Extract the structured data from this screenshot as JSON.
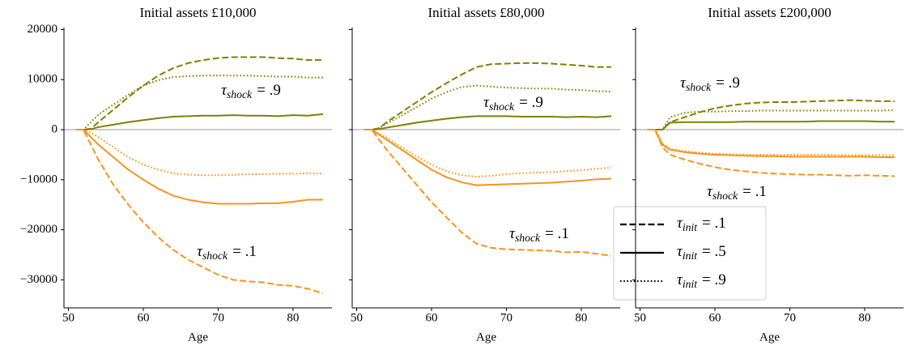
{
  "chart_data": [
    {
      "type": "line",
      "title": "Initial assets £10,000",
      "x_label": "Age",
      "x": [
        51,
        52,
        53,
        54,
        56,
        58,
        60,
        62,
        64,
        66,
        68,
        70,
        72,
        74,
        76,
        78,
        80,
        82,
        84
      ],
      "xlim": [
        49.4,
        85.2
      ],
      "xticks": [
        50,
        60,
        70,
        80
      ],
      "ylim": [
        -35600,
        20400
      ],
      "yticks": [
        {
          "value": -30000,
          "label": "−30000"
        },
        {
          "value": -20000,
          "label": "−20000"
        },
        {
          "value": -10000,
          "label": "−10000"
        },
        0,
        10000,
        20000
      ],
      "ytick_labels": true,
      "reference_line": 0,
      "series": [
        {
          "color": "#808000",
          "dash": "dashed",
          "values": [
            0,
            0,
            200,
            1500,
            4000,
            6500,
            8800,
            10800,
            12300,
            13300,
            13900,
            14300,
            14500,
            14500,
            14500,
            14300,
            14200,
            13900,
            13900
          ]
        },
        {
          "color": "#808000",
          "dash": "solid",
          "values": [
            0,
            0,
            100,
            500,
            1000,
            1500,
            1900,
            2300,
            2600,
            2700,
            2800,
            2800,
            2900,
            2800,
            2800,
            2700,
            2900,
            2800,
            3100
          ]
        },
        {
          "color": "#808000",
          "dash": "dotted",
          "values": [
            0,
            0,
            1500,
            3000,
            5000,
            7000,
            8800,
            9900,
            10500,
            10700,
            10800,
            10800,
            10800,
            10800,
            10700,
            10600,
            10600,
            10400,
            10400
          ]
        },
        {
          "color": "#f7941d",
          "dash": "dashed",
          "values": [
            0,
            0,
            -3000,
            -6000,
            -11000,
            -15000,
            -18500,
            -21500,
            -24000,
            -26000,
            -27500,
            -29000,
            -30000,
            -30300,
            -30500,
            -31000,
            -31200,
            -31800,
            -32700
          ]
        },
        {
          "color": "#f7941d",
          "dash": "solid",
          "values": [
            0,
            0,
            -1500,
            -3000,
            -5500,
            -8000,
            -10000,
            -11800,
            -13200,
            -14000,
            -14500,
            -14800,
            -14800,
            -14800,
            -14700,
            -14700,
            -14400,
            -14000,
            -14000
          ]
        },
        {
          "color": "#f7941d",
          "dash": "dotted",
          "values": [
            0,
            0,
            -600,
            -1500,
            -3500,
            -5500,
            -7000,
            -8000,
            -8700,
            -9000,
            -9100,
            -9100,
            -9000,
            -8900,
            -8900,
            -8800,
            -8800,
            -8700,
            -8800
          ]
        }
      ],
      "annotations": [
        {
          "symbol": "τ",
          "subscript": "shock",
          "text": "= .9",
          "color": "#808000"
        },
        {
          "symbol": "τ",
          "subscript": "shock",
          "text": "= .1",
          "color": "#f7941d"
        }
      ]
    },
    {
      "type": "line",
      "title": "Initial assets £80,000",
      "x_label": "Age",
      "x": [
        51,
        52,
        53,
        54,
        56,
        58,
        60,
        62,
        64,
        66,
        68,
        70,
        72,
        74,
        76,
        78,
        80,
        82,
        84
      ],
      "xlim": [
        49.4,
        85.2
      ],
      "xticks": [
        50,
        60,
        70,
        80
      ],
      "ylim": [
        -35600,
        20400
      ],
      "yticks": [
        -30000,
        -20000,
        -10000,
        0,
        10000,
        20000
      ],
      "ytick_labels": false,
      "reference_line": 0,
      "series": [
        {
          "color": "#808000",
          "dash": "dashed",
          "values": [
            0,
            0,
            300,
            1500,
            3500,
            5500,
            7500,
            9300,
            11000,
            12500,
            13100,
            13200,
            13300,
            13300,
            13200,
            13000,
            12800,
            12500,
            12500
          ]
        },
        {
          "color": "#808000",
          "dash": "solid",
          "values": [
            0,
            0,
            100,
            400,
            900,
            1400,
            1800,
            2200,
            2500,
            2700,
            2700,
            2700,
            2600,
            2600,
            2600,
            2500,
            2600,
            2500,
            2700
          ]
        },
        {
          "color": "#808000",
          "dash": "dotted",
          "values": [
            0,
            0,
            300,
            1200,
            2800,
            4500,
            6200,
            7500,
            8500,
            8800,
            8600,
            8400,
            8300,
            8200,
            8200,
            8000,
            7900,
            7700,
            7600
          ]
        },
        {
          "color": "#f7941d",
          "dash": "dashed",
          "values": [
            0,
            0,
            -2000,
            -4000,
            -7500,
            -11000,
            -14500,
            -17500,
            -20500,
            -22800,
            -23600,
            -23900,
            -24000,
            -24100,
            -24200,
            -24500,
            -24400,
            -24800,
            -25200
          ]
        },
        {
          "color": "#f7941d",
          "dash": "solid",
          "values": [
            0,
            0,
            -1000,
            -2000,
            -4000,
            -6000,
            -8000,
            -9500,
            -10500,
            -11100,
            -11000,
            -10900,
            -10800,
            -10700,
            -10600,
            -10400,
            -10200,
            -9900,
            -9800
          ]
        },
        {
          "color": "#f7941d",
          "dash": "dotted",
          "values": [
            0,
            0,
            -800,
            -1600,
            -3500,
            -5300,
            -7000,
            -8300,
            -9100,
            -9400,
            -9200,
            -8900,
            -8700,
            -8600,
            -8500,
            -8300,
            -8100,
            -7800,
            -7600
          ]
        }
      ],
      "annotations": [
        {
          "symbol": "τ",
          "subscript": "shock",
          "text": "= .9",
          "color": "#808000"
        },
        {
          "symbol": "τ",
          "subscript": "shock",
          "text": "= .1",
          "color": "#f7941d"
        }
      ],
      "legend": {
        "corner": "lower right",
        "entries": [
          {
            "symbol": "τ",
            "subscript": "init",
            "text": "= .1",
            "dash": "dashed"
          },
          {
            "symbol": "τ",
            "subscript": "init",
            "text": "= .5",
            "dash": "solid"
          },
          {
            "symbol": "τ",
            "subscript": "init",
            "text": "= .9",
            "dash": "dotted"
          }
        ]
      }
    },
    {
      "type": "line",
      "title": "Initial assets £200,000",
      "x_label": "Age",
      "x": [
        51,
        52,
        53,
        54,
        56,
        58,
        60,
        62,
        64,
        66,
        68,
        70,
        72,
        74,
        76,
        78,
        80,
        82,
        84
      ],
      "xlim": [
        49.4,
        85.2
      ],
      "xticks": [
        50,
        60,
        70,
        80
      ],
      "ylim": [
        -35600,
        20400
      ],
      "yticks": [
        -30000,
        -20000,
        -10000,
        0,
        10000,
        20000
      ],
      "ytick_labels": false,
      "reference_line": 0,
      "series": [
        {
          "color": "#808000",
          "dash": "dashed",
          "values": [
            0,
            0,
            0,
            1500,
            2500,
            3500,
            4300,
            4800,
            5200,
            5400,
            5500,
            5500,
            5600,
            5700,
            5800,
            5900,
            5800,
            5700,
            5700
          ]
        },
        {
          "color": "#808000",
          "dash": "solid",
          "values": [
            0,
            0,
            0,
            1400,
            1500,
            1500,
            1500,
            1500,
            1600,
            1600,
            1600,
            1600,
            1600,
            1700,
            1700,
            1700,
            1700,
            1600,
            1600
          ]
        },
        {
          "color": "#808000",
          "dash": "dotted",
          "values": [
            0,
            0,
            0,
            2500,
            3400,
            3600,
            3600,
            3700,
            3700,
            3800,
            3800,
            3800,
            3800,
            3800,
            3800,
            3800,
            3800,
            3800,
            3900
          ]
        },
        {
          "color": "#f7941d",
          "dash": "dashed",
          "values": [
            0,
            0,
            -3500,
            -5000,
            -6000,
            -6800,
            -7500,
            -8000,
            -8300,
            -8600,
            -8800,
            -8900,
            -9000,
            -9000,
            -9100,
            -9200,
            -9100,
            -9200,
            -9300
          ]
        },
        {
          "color": "#f7941d",
          "dash": "solid",
          "values": [
            0,
            0,
            -3000,
            -4000,
            -4500,
            -4800,
            -5000,
            -5100,
            -5200,
            -5300,
            -5300,
            -5400,
            -5400,
            -5400,
            -5400,
            -5400,
            -5400,
            -5500,
            -5500
          ]
        },
        {
          "color": "#f7941d",
          "dash": "dotted",
          "values": [
            0,
            0,
            -2800,
            -3800,
            -4300,
            -4600,
            -4800,
            -4900,
            -5000,
            -5000,
            -5000,
            -5000,
            -5000,
            -5000,
            -5000,
            -5100,
            -5100,
            -5100,
            -5100
          ]
        }
      ],
      "annotations": [
        {
          "symbol": "τ",
          "subscript": "shock",
          "text": "= .9",
          "color": "#808000"
        },
        {
          "symbol": "τ",
          "subscript": "shock",
          "text": "= .1",
          "color": "#f7941d"
        }
      ]
    }
  ]
}
